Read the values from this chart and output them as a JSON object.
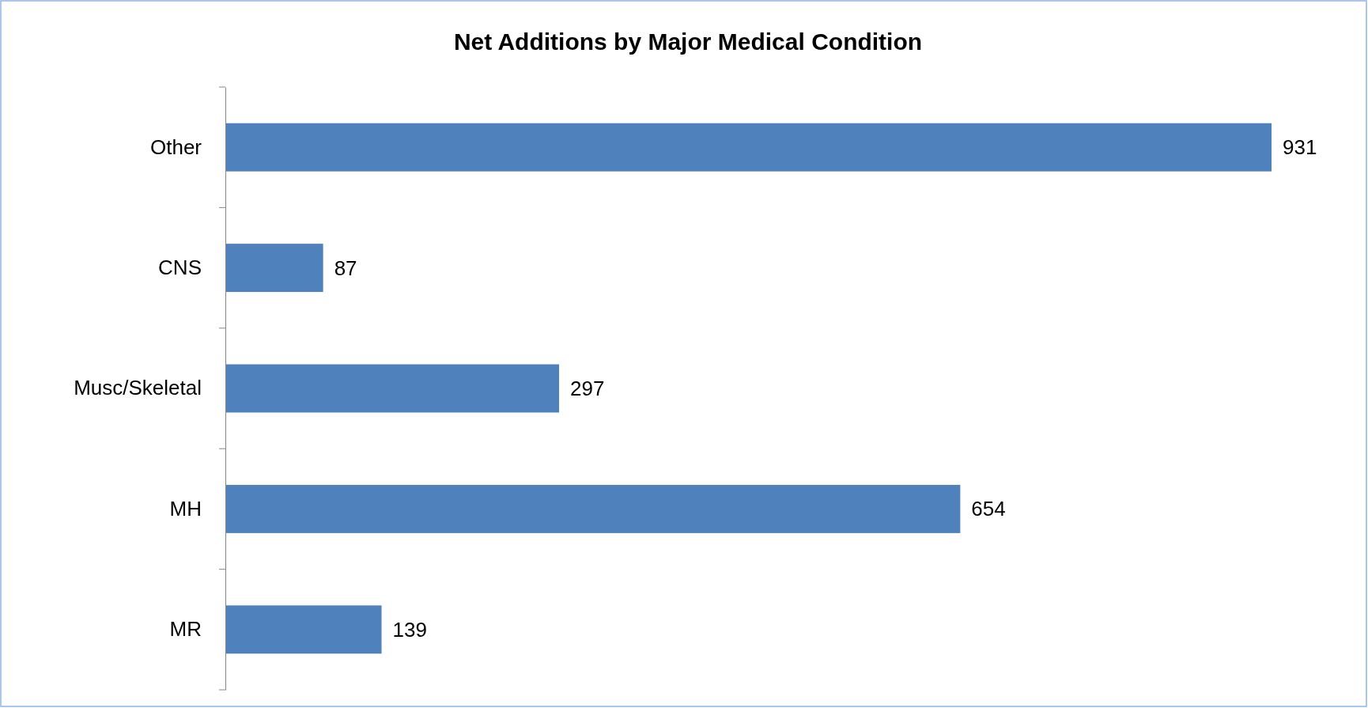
{
  "chart_data": {
    "type": "bar",
    "title": "Net Additions by Major Medical Condition",
    "orientation": "horizontal",
    "categories": [
      "Other",
      "CNS",
      "Musc/Skeletal",
      "MH",
      "MR"
    ],
    "values": [
      931,
      87,
      297,
      654,
      139
    ],
    "color": "#4f81bd",
    "data_labels": true
  }
}
